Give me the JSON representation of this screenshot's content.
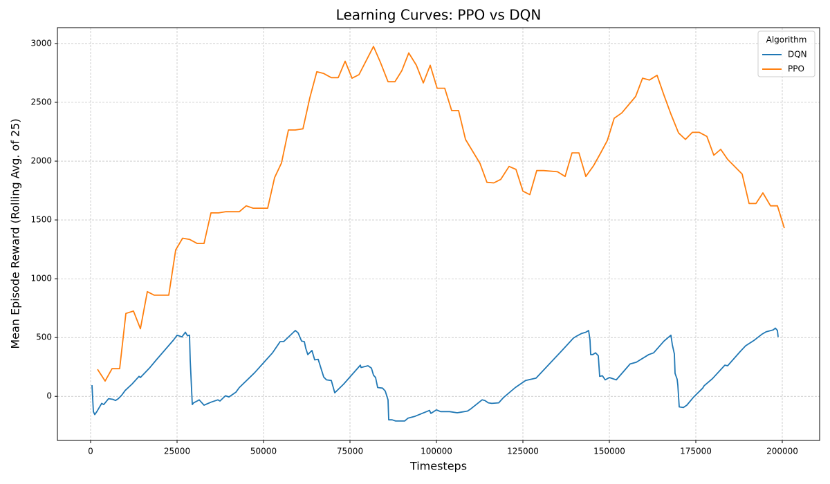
{
  "chart_data": {
    "type": "line",
    "title": "Learning Curves: PPO vs DQN",
    "x_label": "Timesteps",
    "y_label": "Mean Episode Reward (Rolling Avg. of 25)",
    "xlim": [
      -9600,
      210800
    ],
    "ylim": [
      -375,
      3135
    ],
    "xticks": [
      0,
      25000,
      50000,
      75000,
      100000,
      125000,
      150000,
      175000,
      200000
    ],
    "yticks": [
      0,
      500,
      1000,
      1500,
      2000,
      2500,
      3000
    ],
    "grid": true,
    "legend_title": "Algorithm",
    "legend_position": "upper-right",
    "series": [
      {
        "name": "DQN",
        "color": "#1f77b4",
        "x": [
          400,
          800,
          1200,
          1800,
          3200,
          3800,
          5200,
          6400,
          7200,
          8000,
          9000,
          10000,
          12000,
          14000,
          14400,
          17000,
          19000,
          24000,
          25000,
          26000,
          26400,
          27400,
          28000,
          28600,
          28800,
          29400,
          29800,
          30800,
          31400,
          32800,
          34800,
          36800,
          37400,
          39000,
          40000,
          42000,
          43000,
          47400,
          52600,
          54800,
          55800,
          59200,
          60000,
          61000,
          61800,
          62200,
          62800,
          64000,
          64800,
          65800,
          67400,
          68200,
          69600,
          70600,
          73200,
          78000,
          78200,
          80200,
          81200,
          81800,
          82400,
          83000,
          84400,
          85200,
          86000,
          86200,
          87200,
          88200,
          90800,
          91800,
          93800,
          98000,
          98400,
          100000,
          101200,
          103800,
          106000,
          107000,
          109000,
          110000,
          113200,
          114000,
          115000,
          116000,
          118000,
          119400,
          122800,
          125800,
          128800,
          136800,
          139600,
          140400,
          142000,
          143200,
          144000,
          144400,
          144600,
          145200,
          146000,
          146800,
          147200,
          148000,
          148800,
          150000,
          152000,
          156000,
          157800,
          161400,
          162800,
          165800,
          167000,
          167800,
          168200,
          168800,
          169000,
          169600,
          169800,
          170200,
          171400,
          172400,
          174400,
          177000,
          177400,
          179800,
          183400,
          184200,
          187800,
          189400,
          191800,
          194200,
          195400,
          197400,
          198000,
          198600,
          198800
        ],
        "values": [
          95,
          -130,
          -155,
          -130,
          -60,
          -70,
          -20,
          -25,
          -35,
          -20,
          10,
          50,
          105,
          170,
          160,
          240,
          310,
          480,
          520,
          510,
          505,
          545,
          515,
          520,
          310,
          -70,
          -55,
          -40,
          -30,
          -75,
          -50,
          -30,
          -40,
          5,
          -5,
          35,
          75,
          200,
          370,
          465,
          465,
          560,
          540,
          470,
          465,
          410,
          355,
          390,
          310,
          315,
          165,
          140,
          135,
          30,
          105,
          265,
          245,
          260,
          240,
          180,
          160,
          75,
          70,
          45,
          -30,
          -200,
          -200,
          -210,
          -210,
          -185,
          -170,
          -120,
          -145,
          -115,
          -130,
          -130,
          -140,
          -135,
          -125,
          -105,
          -30,
          -35,
          -55,
          -60,
          -55,
          -10,
          75,
          135,
          155,
          405,
          495,
          510,
          535,
          545,
          560,
          480,
          355,
          355,
          370,
          345,
          170,
          175,
          140,
          160,
          140,
          275,
          290,
          355,
          370,
          470,
          500,
          520,
          440,
          360,
          195,
          145,
          95,
          -90,
          -95,
          -75,
          -5,
          70,
          90,
          150,
          265,
          260,
          380,
          430,
          475,
          530,
          550,
          565,
          580,
          560,
          505
        ]
      },
      {
        "name": "PPO",
        "color": "#ff7f0e",
        "x": [
          2000,
          4200,
          6200,
          8400,
          10200,
          12400,
          14400,
          16400,
          18400,
          22600,
          24600,
          26600,
          28600,
          30800,
          32800,
          34800,
          37000,
          39000,
          43000,
          45000,
          47000,
          51200,
          53200,
          55200,
          57200,
          59200,
          61400,
          63400,
          65400,
          67400,
          69600,
          71600,
          73600,
          75600,
          77600,
          81800,
          83800,
          86000,
          88000,
          90000,
          92000,
          94200,
          96200,
          98200,
          100200,
          102400,
          104400,
          106400,
          108400,
          112600,
          114600,
          116600,
          118600,
          121000,
          123000,
          125000,
          127000,
          129000,
          131000,
          135000,
          137200,
          139200,
          141200,
          143200,
          145400,
          147400,
          149400,
          151400,
          153600,
          157600,
          159600,
          161600,
          163800,
          165800,
          167800,
          170000,
          172000,
          174000,
          176000,
          178200,
          180200,
          182200,
          184200,
          188400,
          190400,
          192400,
          194400,
          196600,
          198600,
          200600
        ],
        "values": [
          230,
          130,
          235,
          235,
          705,
          725,
          575,
          890,
          860,
          860,
          1245,
          1345,
          1335,
          1300,
          1300,
          1560,
          1560,
          1570,
          1570,
          1620,
          1600,
          1600,
          1860,
          1985,
          2265,
          2265,
          2275,
          2540,
          2760,
          2745,
          2710,
          2710,
          2850,
          2705,
          2735,
          2975,
          2840,
          2675,
          2675,
          2770,
          2920,
          2815,
          2665,
          2815,
          2620,
          2620,
          2430,
          2430,
          2185,
          1980,
          1820,
          1815,
          1845,
          1955,
          1930,
          1745,
          1715,
          1920,
          1920,
          1910,
          1870,
          2070,
          2070,
          1870,
          1960,
          2065,
          2175,
          2365,
          2410,
          2550,
          2705,
          2690,
          2730,
          2560,
          2400,
          2240,
          2185,
          2245,
          2245,
          2210,
          2050,
          2100,
          2015,
          1890,
          1640,
          1640,
          1730,
          1620,
          1620,
          1430
        ]
      }
    ]
  }
}
